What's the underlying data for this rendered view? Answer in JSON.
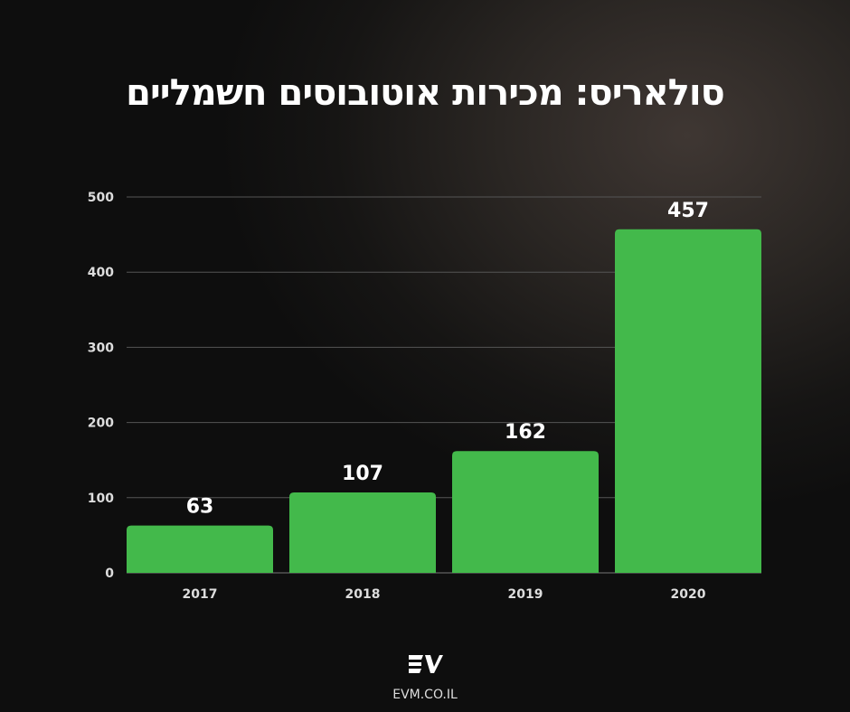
{
  "chart_data": {
    "type": "bar",
    "title": "סולאריס: מכירות אוטובוסים חשמליים",
    "categories": [
      "2017",
      "2018",
      "2019",
      "2020"
    ],
    "values": [
      63,
      107,
      162,
      457
    ],
    "ylim": [
      0,
      500
    ],
    "yticks": [
      0,
      100,
      200,
      300,
      400,
      500
    ],
    "grid": true,
    "xlabel": "",
    "ylabel": "",
    "bar_color": "#43b94b"
  },
  "footer": {
    "logo_text": "EV",
    "site": "EVM.CO.IL"
  }
}
